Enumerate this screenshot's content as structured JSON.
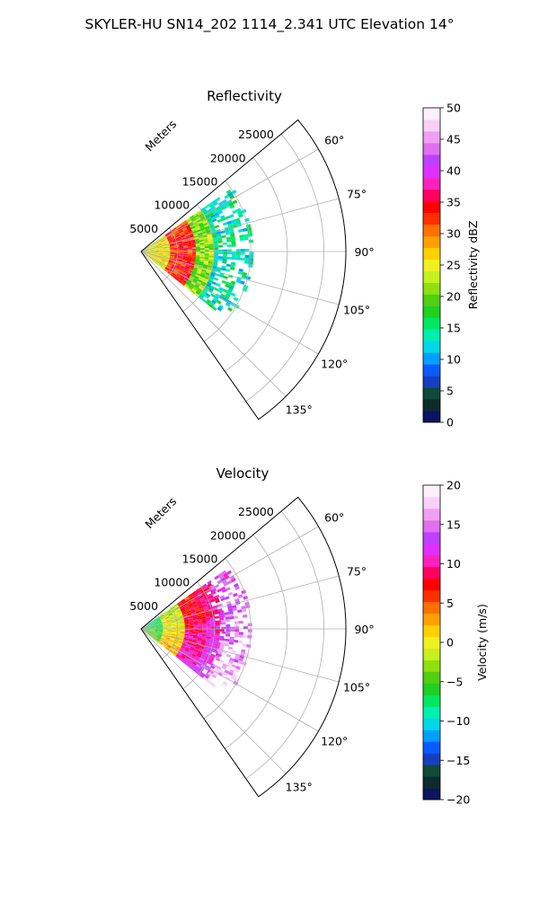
{
  "figure": {
    "title": "SKYLER-HU  SN14_202  1114_2.341 UTC Elevation 14°"
  },
  "chart_data": [
    {
      "type": "heatmap",
      "title": "Reflectivity",
      "radial_label": "Meters",
      "radial_ticks": [
        5000,
        10000,
        15000,
        20000,
        25000
      ],
      "radial_tick_labels": [
        "5000",
        "10000",
        "15000",
        "20000",
        "25000"
      ],
      "radial_range": [
        0,
        28000
      ],
      "azimuth_range_deg": [
        50,
        145
      ],
      "azimuth_ticks": [
        60,
        75,
        90,
        105,
        120,
        135
      ],
      "azimuth_tick_labels": [
        "60°",
        "75°",
        "90°",
        "105°",
        "120°",
        "135°"
      ],
      "grid": true,
      "colorbar": {
        "label": "Reflectivity dBZ",
        "range": [
          0,
          50
        ],
        "ticks": [
          0,
          5,
          10,
          15,
          20,
          25,
          30,
          35,
          40,
          45,
          50
        ],
        "tick_labels": [
          "0",
          "5",
          "10",
          "15",
          "20",
          "25",
          "30",
          "35",
          "40",
          "45",
          "50"
        ]
      },
      "data_summary": {
        "echo_max_range_m": 15000,
        "echo_azimuth_span_deg": [
          55,
          128
        ],
        "rings": [
          {
            "range_m": [
              0,
              4000
            ],
            "value": 25
          },
          {
            "range_m": [
              4000,
              7500
            ],
            "value": 33
          },
          {
            "range_m": [
              7500,
              10000
            ],
            "value": 21
          },
          {
            "range_m": [
              10000,
              15000
            ],
            "value": 14
          }
        ]
      }
    },
    {
      "type": "heatmap",
      "title": "Velocity",
      "radial_label": "Meters",
      "radial_ticks": [
        5000,
        10000,
        15000,
        20000,
        25000
      ],
      "radial_tick_labels": [
        "5000",
        "10000",
        "15000",
        "20000",
        "25000"
      ],
      "radial_range": [
        0,
        28000
      ],
      "azimuth_range_deg": [
        50,
        145
      ],
      "azimuth_ticks": [
        60,
        75,
        90,
        105,
        120,
        135
      ],
      "azimuth_tick_labels": [
        "60°",
        "75°",
        "90°",
        "105°",
        "120°",
        "135°"
      ],
      "grid": true,
      "colorbar": {
        "label": "Velocity (m/s)",
        "range": [
          -20,
          20
        ],
        "ticks": [
          -20,
          -15,
          -10,
          -5,
          0,
          5,
          10,
          15,
          20
        ],
        "tick_labels": [
          "−20",
          "−15",
          "−10",
          "−5",
          "0",
          "5",
          "10",
          "15",
          "20"
        ]
      },
      "data_summary": {
        "echo_max_range_m": 15000,
        "echo_azimuth_span_deg": [
          55,
          128
        ],
        "rings": [
          {
            "range_m": [
              0,
              3000
            ],
            "value": -6
          },
          {
            "range_m": [
              3000,
              6000
            ],
            "value": 0
          },
          {
            "range_m": [
              6000,
              9000
            ],
            "value": 9
          },
          {
            "range_m": [
              9000,
              11000
            ],
            "value": 11
          },
          {
            "range_m": [
              11000,
              15000
            ],
            "value": 15
          }
        ]
      }
    }
  ],
  "colors": {
    "reflectivity_cmap": [
      "#0b1560",
      "#0e2b2b",
      "#0f4a3a",
      "#1440c0",
      "#0a5cff",
      "#00a0ff",
      "#00d8e8",
      "#00f0b0",
      "#00e860",
      "#20d020",
      "#50d010",
      "#90e010",
      "#c8f020",
      "#f0f020",
      "#ffd000",
      "#ffa000",
      "#ff7000",
      "#ff3000",
      "#ff0000",
      "#ff0060",
      "#ff20c0",
      "#e030ff",
      "#c040ff",
      "#e070f0",
      "#f0a0f0",
      "#f8d0f8",
      "#fff0ff"
    ],
    "velocity_cmap": [
      "#0b1560",
      "#0e2b2b",
      "#0f4a3a",
      "#1440c0",
      "#0a5cff",
      "#00a0ff",
      "#00d8e8",
      "#00f0b0",
      "#00e860",
      "#20d020",
      "#50d010",
      "#90e010",
      "#c8f020",
      "#f0f020",
      "#ffd000",
      "#ffa000",
      "#ff7000",
      "#ff3000",
      "#ff0000",
      "#ff0060",
      "#ff20c0",
      "#e030ff",
      "#c040ff",
      "#e070f0",
      "#f0a0f0",
      "#f8d0f8",
      "#fff0ff"
    ],
    "grid": "#b0b0b0",
    "axis": "#000000"
  }
}
